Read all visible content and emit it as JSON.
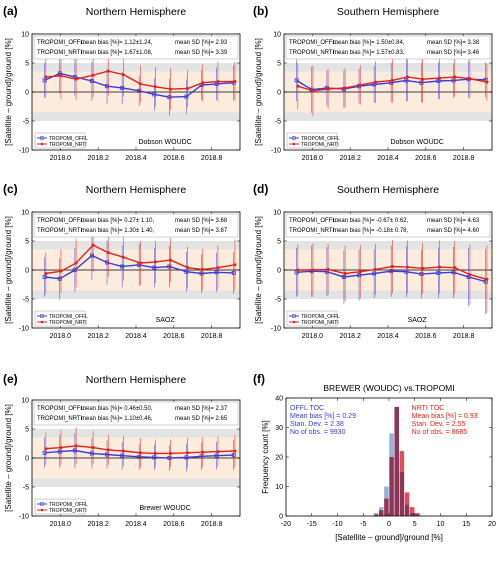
{
  "colors": {
    "offl": "#3b3bd6",
    "nrti": "#e2231a",
    "band_inner": "#fcecde",
    "band_outer": "#e3e3e3",
    "offl_bar": "#8fb5d8",
    "nrti_bar": "#dd4e5c",
    "overlap_bar": "#8c3758"
  },
  "chart_data": [
    {
      "type": "line",
      "panel_label": "(a)",
      "title": "Northern Hemisphere",
      "ylabel": "[Satellite – ground]/ground [%]",
      "ylim": [
        -10,
        10
      ],
      "xlim": [
        2017.85,
        2018.95
      ],
      "yticks": [
        "-10",
        "-5",
        "0",
        "5",
        "10"
      ],
      "xticks": [
        "2018.0",
        "2018.2",
        "2018.4",
        "2018.6",
        "2018.8"
      ],
      "stats": [
        {
          "name": "TROPOMI_OFFL:",
          "bias": "mean bias [%]= 1.12±1.24,",
          "sd": "mean SD [%]= 2.93"
        },
        {
          "name": "TROPOMI_NRTI:",
          "bias": "mean bias [%]= 1.67±1.08,",
          "sd": "mean SD [%]= 3.39"
        }
      ],
      "source": "Dobson WOUDC",
      "legend": [
        "TROPOMI_OFFL",
        "TROPOMI_NRTI"
      ],
      "x": [
        2017.92,
        2018.0,
        2018.08,
        2018.17,
        2018.25,
        2018.33,
        2018.42,
        2018.5,
        2018.58,
        2018.67,
        2018.75,
        2018.83,
        2018.92
      ],
      "series": [
        {
          "name": "TROPOMI_OFFL",
          "values": [
            2.0,
            3.2,
            2.6,
            1.9,
            1.0,
            0.7,
            0.2,
            -0.4,
            -0.9,
            -0.8,
            1.2,
            1.4,
            1.6
          ],
          "err": [
            3.0,
            3.5,
            3.2,
            3.4,
            3.0,
            2.8,
            2.6,
            2.8,
            3.2,
            3.0,
            2.6,
            2.8,
            3.0
          ]
        },
        {
          "name": "TROPOMI_NRTI",
          "values": [
            2.6,
            2.8,
            2.2,
            2.9,
            3.6,
            3.0,
            1.4,
            0.9,
            0.5,
            0.6,
            1.6,
            1.8,
            1.8
          ],
          "err": [
            3.6,
            4.0,
            3.6,
            3.8,
            4.2,
            3.8,
            3.2,
            3.4,
            3.6,
            3.2,
            3.2,
            3.4,
            3.4
          ]
        }
      ]
    },
    {
      "type": "line",
      "panel_label": "(b)",
      "title": "Southern Hemisphere",
      "ylabel": "[Satellite – ground]/ground [%]",
      "ylim": [
        -10,
        10
      ],
      "xlim": [
        2017.85,
        2018.95
      ],
      "yticks": [
        "-10",
        "-5",
        "0",
        "5",
        "10"
      ],
      "xticks": [
        "2018.0",
        "2018.2",
        "2018.4",
        "2018.6",
        "2018.8"
      ],
      "stats": [
        {
          "name": "TROPOMI_OFFL:",
          "bias": "mean bias [%]= 1.50±0.84,",
          "sd": "mean SD [%]= 3.38"
        },
        {
          "name": "TROPOMI_NRTI:",
          "bias": "mean bias [%]= 1.57±0.83,",
          "sd": "mean SD [%]= 3.46"
        }
      ],
      "source": "Dobson WOUDC",
      "legend": [
        "TROPOMI_OFFL",
        "TROPOMI_NRTI"
      ],
      "x": [
        2017.92,
        2018.0,
        2018.08,
        2018.17,
        2018.25,
        2018.33,
        2018.42,
        2018.5,
        2018.58,
        2018.67,
        2018.75,
        2018.83,
        2018.92
      ],
      "series": [
        {
          "name": "TROPOMI_OFFL",
          "values": [
            2.0,
            0.4,
            0.7,
            0.5,
            1.0,
            1.3,
            1.6,
            2.0,
            1.6,
            1.9,
            2.0,
            2.2,
            2.1
          ],
          "err": [
            3.6,
            4.0,
            3.0,
            3.2,
            3.0,
            3.2,
            3.4,
            3.6,
            3.4,
            3.2,
            3.0,
            3.2,
            3.0
          ]
        },
        {
          "name": "TROPOMI_NRTI",
          "values": [
            1.0,
            0.2,
            0.5,
            0.7,
            1.2,
            1.7,
            2.0,
            2.6,
            2.2,
            2.4,
            2.6,
            2.3,
            1.7
          ],
          "err": [
            4.0,
            4.4,
            3.4,
            3.4,
            3.4,
            3.6,
            3.8,
            4.2,
            4.0,
            3.6,
            3.4,
            3.4,
            3.2
          ]
        }
      ]
    },
    {
      "type": "line",
      "panel_label": "(c)",
      "title": "Northern Hemisphere",
      "ylabel": "[Satellite – ground]/ground [%]",
      "ylim": [
        -10,
        10
      ],
      "xlim": [
        2017.85,
        2018.95
      ],
      "yticks": [
        "-10",
        "-5",
        "0",
        "5",
        "10"
      ],
      "xticks": [
        "2018.0",
        "2018.2",
        "2018.4",
        "2018.6",
        "2018.8"
      ],
      "stats": [
        {
          "name": "TROPOMI_OFFL:",
          "bias": "mean bias [%]= 0.27± 1.10,",
          "sd": "mean SD [%]= 3.68"
        },
        {
          "name": "TROPOMI_NRTI:",
          "bias": "mean bias [%]= 1.30± 1.40,",
          "sd": "mean SD [%]= 3.87"
        }
      ],
      "source": "SAOZ",
      "legend": [
        "TROPOMI_OFFL",
        "TROPOMI_NRTI"
      ],
      "x": [
        2017.92,
        2018.0,
        2018.08,
        2018.17,
        2018.25,
        2018.33,
        2018.42,
        2018.5,
        2018.58,
        2018.67,
        2018.75,
        2018.83,
        2018.92
      ],
      "series": [
        {
          "name": "TROPOMI_OFFL",
          "values": [
            -1.2,
            -1.5,
            0.0,
            2.5,
            1.3,
            0.6,
            0.9,
            0.4,
            0.6,
            -0.3,
            -0.6,
            -0.4,
            -0.5
          ],
          "err": [
            3.4,
            3.6,
            3.8,
            4.2,
            3.8,
            3.6,
            3.6,
            3.4,
            3.6,
            3.4,
            3.4,
            3.4,
            3.6
          ]
        },
        {
          "name": "TROPOMI_NRTI",
          "values": [
            -0.6,
            -0.2,
            1.2,
            4.3,
            3.0,
            2.2,
            1.2,
            1.4,
            1.7,
            0.4,
            0.1,
            0.4,
            0.9
          ],
          "err": [
            3.6,
            3.8,
            4.2,
            4.6,
            4.2,
            4.0,
            3.8,
            3.6,
            3.8,
            3.6,
            3.6,
            3.8,
            4.4
          ]
        }
      ]
    },
    {
      "type": "line",
      "panel_label": "(d)",
      "title": "Southern Hemisphere",
      "ylabel": "[Satellite – ground]/ground [%]",
      "ylim": [
        -10,
        10
      ],
      "xlim": [
        2017.85,
        2018.95
      ],
      "yticks": [
        "-10",
        "-5",
        "0",
        "5",
        "10"
      ],
      "xticks": [
        "2018.0",
        "2018.2",
        "2018.4",
        "2018.6",
        "2018.8"
      ],
      "stats": [
        {
          "name": "TROPOMI_OFFL:",
          "bias": "mean bias [%]= -0.67± 0.62,",
          "sd": "mean SD [%]= 4.63"
        },
        {
          "name": "TROPOMI_NRTI:",
          "bias": "mean bias [%]= -0.18± 0.78,",
          "sd": "mean SD [%]= 4.60"
        }
      ],
      "source": "SAOZ",
      "legend": [
        "TROPOMI_OFFL",
        "TROPOMI_NRTI"
      ],
      "x": [
        2017.92,
        2018.0,
        2018.08,
        2018.17,
        2018.25,
        2018.33,
        2018.42,
        2018.5,
        2018.58,
        2018.67,
        2018.75,
        2018.83,
        2018.92
      ],
      "series": [
        {
          "name": "TROPOMI_OFFL",
          "values": [
            -0.4,
            -0.2,
            -0.3,
            -1.2,
            -0.9,
            -0.6,
            -0.2,
            -0.3,
            -0.7,
            -0.5,
            -0.4,
            -1.2,
            -2.0
          ],
          "err": [
            4.2,
            4.4,
            4.2,
            4.6,
            4.4,
            4.2,
            4.4,
            4.4,
            4.2,
            4.4,
            4.4,
            5.0,
            5.6
          ]
        },
        {
          "name": "TROPOMI_NRTI",
          "values": [
            0.0,
            0.0,
            0.1,
            -0.6,
            -0.3,
            0.1,
            0.6,
            0.5,
            0.3,
            0.5,
            0.4,
            -0.8,
            -1.6
          ],
          "err": [
            4.4,
            4.6,
            4.4,
            4.8,
            4.6,
            4.4,
            4.6,
            4.6,
            4.4,
            4.6,
            4.6,
            5.2,
            5.8
          ]
        }
      ]
    },
    {
      "type": "line",
      "panel_label": "(e)",
      "title": "Northern Hemisphere",
      "ylabel": "[Satellite – ground]/ground [%]",
      "ylim": [
        -10,
        10
      ],
      "xlim": [
        2017.85,
        2018.95
      ],
      "yticks": [
        "-10",
        "-5",
        "0",
        "5",
        "10"
      ],
      "xticks": [
        "2018.0",
        "2018.2",
        "2018.4",
        "2018.6",
        "2018.8"
      ],
      "stats": [
        {
          "name": "TROPOMI_OFFL:",
          "bias": "mean bias [%]= 0.46±0.50,",
          "sd": "mean SD [%]= 2.37"
        },
        {
          "name": "TROPOMI_NRTI:",
          "bias": "mean bias [%]= 1.10±0.46,",
          "sd": "mean SD [%]= 2.65"
        }
      ],
      "source": "Brewer WOUDC",
      "legend": [
        "TROPOMI_OFFL",
        "TROPOMI_NRTI"
      ],
      "x": [
        2017.92,
        2018.0,
        2018.08,
        2018.17,
        2018.25,
        2018.33,
        2018.42,
        2018.5,
        2018.58,
        2018.67,
        2018.75,
        2018.83,
        2018.92
      ],
      "series": [
        {
          "name": "TROPOMI_OFFL",
          "values": [
            0.9,
            1.1,
            1.3,
            0.8,
            0.6,
            0.4,
            0.2,
            0.1,
            0.0,
            0.1,
            0.3,
            0.4,
            0.5
          ],
          "err": [
            2.6,
            2.8,
            3.0,
            2.6,
            2.4,
            2.4,
            2.2,
            2.2,
            2.2,
            2.4,
            2.4,
            2.4,
            2.6
          ]
        },
        {
          "name": "TROPOMI_NRTI",
          "values": [
            1.6,
            1.8,
            2.1,
            1.8,
            1.4,
            1.2,
            0.9,
            0.8,
            0.8,
            0.9,
            1.0,
            1.1,
            1.2
          ],
          "err": [
            2.8,
            3.0,
            3.2,
            2.8,
            2.6,
            2.6,
            2.6,
            2.4,
            2.4,
            2.6,
            2.6,
            2.6,
            2.8
          ]
        }
      ]
    },
    {
      "type": "bar",
      "panel_label": "(f)",
      "title": "BREWER (WOUDC) vs.TROPOMI",
      "xlabel": "[Satellite – ground]/ground [%]",
      "ylabel": "Frequency count [%]",
      "xlim": [
        -20,
        20
      ],
      "ylim": [
        0,
        40
      ],
      "xticks": [
        "-20",
        "-15",
        "-10",
        "-5",
        "0",
        "5",
        "10",
        "15",
        "20"
      ],
      "yticks": [
        "0",
        "10",
        "20",
        "30",
        "40"
      ],
      "bin_edges": [
        -3,
        -2,
        -1,
        0,
        1,
        2,
        3,
        4,
        5,
        6
      ],
      "annotations": {
        "offl": [
          "OFFL TOC",
          "Mean bias [%] = 0.29",
          "Stan. Dev. = 2.38",
          "No of obs. = 9930"
        ],
        "nrti": [
          "NRTI TOC",
          "Mean bias [%] = 0.93",
          "Stan. Dev. = 2.55",
          "No of obs. = 8685"
        ]
      },
      "series": [
        {
          "name": "OFFL TOC",
          "values": [
            1,
            3,
            10,
            28,
            37,
            15,
            4,
            1,
            0.5
          ]
        },
        {
          "name": "NRTI TOC",
          "values": [
            0.5,
            2,
            6,
            20,
            37,
            22,
            8,
            3,
            1
          ]
        }
      ]
    }
  ]
}
